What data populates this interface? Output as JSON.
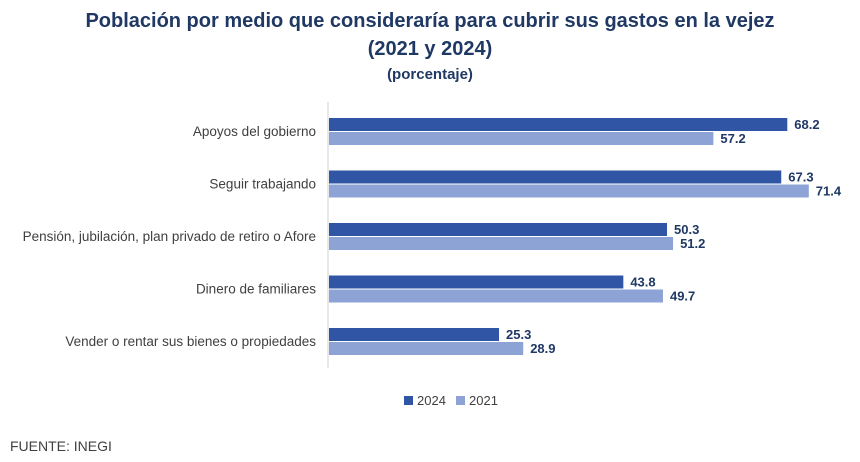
{
  "chart_data": {
    "type": "bar",
    "orientation": "horizontal",
    "title": "Población por medio que consideraría para cubrir sus gastos en la vejez",
    "subtitle": "(2021 y 2024)",
    "unit_label": "(porcentaje)",
    "categories": [
      "Apoyos del gobierno",
      "Seguir trabajando",
      "Pensión, jubilación, plan privado de retiro o Afore",
      "Dinero de familiares",
      "Vender o rentar sus bienes o propiedades"
    ],
    "series": [
      {
        "name": "2024",
        "color": "#2f55a4",
        "values": [
          68.2,
          67.3,
          50.3,
          43.8,
          25.3
        ]
      },
      {
        "name": "2021",
        "color": "#8ea3d5",
        "values": [
          57.2,
          71.4,
          51.2,
          49.7,
          28.9
        ]
      }
    ],
    "xlim": [
      0,
      80
    ],
    "legend": "bottom-center",
    "label_color": "#1f3864"
  },
  "source": "FUENTE: INEGI"
}
